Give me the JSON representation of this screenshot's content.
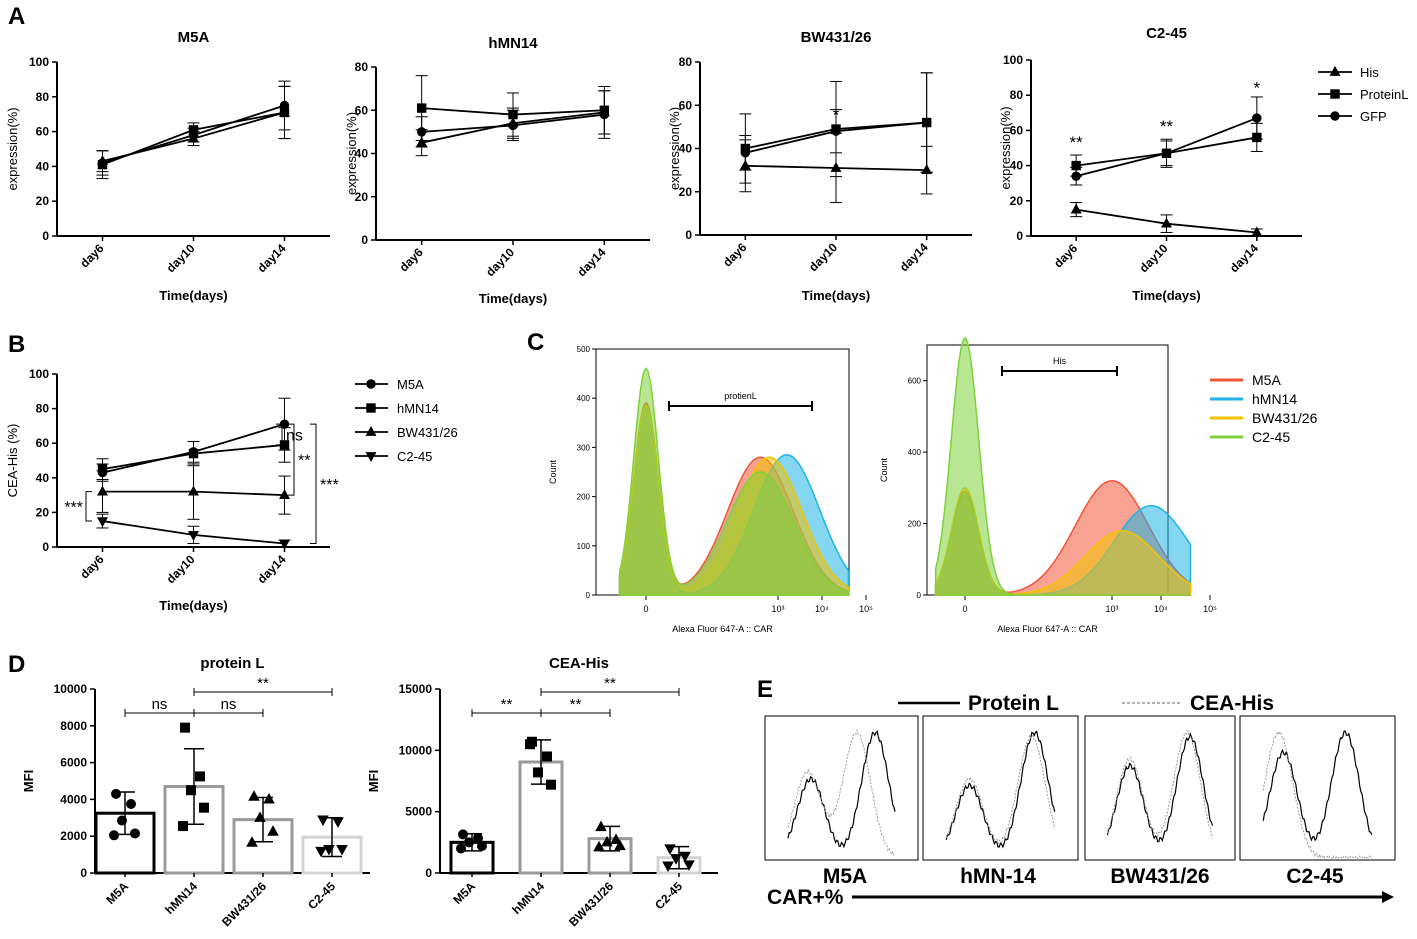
{
  "panel_labels": {
    "A": "A",
    "B": "B",
    "C": "C",
    "D": "D",
    "E": "E"
  },
  "colors": {
    "M5A": "#f0563a",
    "hMN14": "#1fb4e5",
    "BW431_26": "#f2c300",
    "C2_45": "#7fd13b",
    "orange": "#f39320",
    "ink": "#000000",
    "gray": "#9a9a9a"
  },
  "chart_data": [
    {
      "id": "A1",
      "type": "line",
      "title": "M5A",
      "xlabel": "Time(days)",
      "ylabel": "expression(%)",
      "categories": [
        "day6",
        "day10",
        "day14"
      ],
      "ylim": [
        0,
        100
      ],
      "yticks": [
        0,
        20,
        40,
        60,
        80,
        100
      ],
      "series": [
        {
          "name": "His",
          "marker": "triangle",
          "values": [
            43,
            56,
            71
          ],
          "err": [
            6,
            4,
            15
          ]
        },
        {
          "name": "ProteinL",
          "marker": "square",
          "values": [
            41,
            61,
            71
          ],
          "err": [
            8,
            4,
            15
          ]
        },
        {
          "name": "GFP",
          "marker": "circle",
          "values": [
            42,
            58,
            75
          ],
          "err": [
            7,
            4,
            14
          ]
        }
      ],
      "annotations": []
    },
    {
      "id": "A2",
      "type": "line",
      "title": "hMN14",
      "xlabel": "Time(days)",
      "ylabel": "expression(%)",
      "categories": [
        "day6",
        "day10",
        "day14"
      ],
      "ylim": [
        0,
        80
      ],
      "yticks": [
        0,
        20,
        40,
        60,
        80
      ],
      "series": [
        {
          "name": "His",
          "marker": "triangle",
          "values": [
            45,
            54,
            59
          ],
          "err": [
            6,
            7,
            10
          ]
        },
        {
          "name": "ProteinL",
          "marker": "square",
          "values": [
            61,
            58,
            60
          ],
          "err": [
            15,
            10,
            11
          ]
        },
        {
          "name": "GFP",
          "marker": "circle",
          "values": [
            50,
            53,
            58
          ],
          "err": [
            7,
            7,
            11
          ]
        }
      ],
      "annotations": []
    },
    {
      "id": "A3",
      "type": "line",
      "title": "BW431/26",
      "xlabel": "Time(days)",
      "ylabel": "expression(%)",
      "categories": [
        "day6",
        "day10",
        "day14"
      ],
      "ylim": [
        0,
        80
      ],
      "yticks": [
        0,
        20,
        40,
        60,
        80
      ],
      "series": [
        {
          "name": "His",
          "marker": "triangle",
          "values": [
            32,
            31,
            30
          ],
          "err": [
            12,
            16,
            11
          ]
        },
        {
          "name": "ProteinL",
          "marker": "square",
          "values": [
            40,
            49,
            52
          ],
          "err": [
            16,
            22,
            23
          ]
        },
        {
          "name": "GFP",
          "marker": "circle",
          "values": [
            38,
            48,
            52
          ],
          "err": [
            8,
            10,
            23
          ]
        }
      ],
      "annotations": [
        {
          "text": "*",
          "cat": 1,
          "y": 53
        }
      ]
    },
    {
      "id": "A4",
      "type": "line",
      "title": "C2-45",
      "xlabel": "Time(days)",
      "ylabel": "expression(%)",
      "categories": [
        "day6",
        "day10",
        "day14"
      ],
      "ylim": [
        0,
        100
      ],
      "yticks": [
        0,
        20,
        40,
        60,
        80,
        100
      ],
      "series": [
        {
          "name": "His",
          "marker": "triangle",
          "values": [
            15,
            7,
            2
          ],
          "err": [
            4,
            5,
            2
          ]
        },
        {
          "name": "ProteinL",
          "marker": "square",
          "values": [
            40,
            47,
            56
          ],
          "err": [
            6,
            7,
            8
          ]
        },
        {
          "name": "GFP",
          "marker": "circle",
          "values": [
            34,
            47,
            67
          ],
          "err": [
            5,
            8,
            12
          ]
        }
      ],
      "annotations": [
        {
          "text": "**",
          "cat": 0,
          "y": 50
        },
        {
          "text": "**",
          "cat": 1,
          "y": 59
        },
        {
          "text": "*",
          "cat": 2,
          "y": 81
        }
      ]
    },
    {
      "id": "B",
      "type": "line",
      "title": "",
      "xlabel": "Time(days)",
      "ylabel": "CEA-His (%)",
      "categories": [
        "day6",
        "day10",
        "day14"
      ],
      "ylim": [
        0,
        100
      ],
      "yticks": [
        0,
        20,
        40,
        60,
        80,
        100
      ],
      "series": [
        {
          "name": "M5A",
          "marker": "circle",
          "values": [
            43,
            55,
            71
          ],
          "err": [
            5,
            6,
            15
          ]
        },
        {
          "name": "hMN14",
          "marker": "square",
          "values": [
            45,
            54,
            59
          ],
          "err": [
            6,
            7,
            10
          ]
        },
        {
          "name": "BW431/26",
          "marker": "triangle",
          "values": [
            32,
            32,
            30
          ],
          "err": [
            12,
            16,
            11
          ]
        },
        {
          "name": "C2-45",
          "marker": "triangle-down",
          "values": [
            15,
            7,
            2
          ],
          "err": [
            4,
            5,
            2
          ]
        }
      ],
      "brackets": [
        {
          "text": "ns",
          "from": 71,
          "to": 59
        },
        {
          "text": "**",
          "from": 71,
          "to": 30
        },
        {
          "text": "***",
          "from": 71,
          "to": 2
        },
        {
          "text": "***",
          "from": 32,
          "to": 15
        }
      ]
    },
    {
      "id": "C1",
      "type": "area",
      "title": "",
      "xlabel": "Alexa Fluor 647-A :: CAR",
      "ylabel": "Count",
      "gate_label": "protienL",
      "ylim": [
        0,
        500
      ],
      "yticks": [
        0,
        100,
        200,
        300,
        400,
        500
      ],
      "xticks": [
        "0",
        "10³",
        "10⁴",
        "10⁵"
      ],
      "series": [
        {
          "name": "M5A",
          "peaks": [
            [
              0,
              390
            ],
            [
              2.6,
              280
            ]
          ]
        },
        {
          "name": "hMN14",
          "peaks": [
            [
              0,
              380
            ],
            [
              3.2,
              285
            ]
          ]
        },
        {
          "name": "BW431/26",
          "peaks": [
            [
              0,
              385
            ],
            [
              2.8,
              280
            ]
          ]
        },
        {
          "name": "C2-45",
          "peaks": [
            [
              0,
              460
            ],
            [
              2.6,
              250
            ]
          ]
        }
      ]
    },
    {
      "id": "C2",
      "type": "area",
      "title": "",
      "xlabel": "Alexa Fluor 647-A :: CAR",
      "ylabel": "Count",
      "gate_label": "His",
      "ylim": [
        0,
        700
      ],
      "yticks": [
        0,
        200,
        400,
        600
      ],
      "xticks": [
        "0",
        "10³",
        "10⁴",
        "10⁵"
      ],
      "series": [
        {
          "name": "M5A",
          "peaks": [
            [
              0,
              290
            ],
            [
              3.0,
              320
            ]
          ]
        },
        {
          "name": "hMN14",
          "peaks": [
            [
              0,
              280
            ],
            [
              3.8,
              250
            ]
          ]
        },
        {
          "name": "BW431/26",
          "peaks": [
            [
              0,
              300
            ],
            [
              3.2,
              180
            ]
          ]
        },
        {
          "name": "C2-45",
          "peaks": [
            [
              0,
              720
            ]
          ]
        }
      ]
    },
    {
      "id": "D1",
      "type": "bar",
      "title": "protein L",
      "xlabel": "",
      "ylabel": "MFI",
      "categories": [
        "M5A",
        "hMN14",
        "BW431/26",
        "C2-45"
      ],
      "ylim": [
        0,
        10000
      ],
      "yticks": [
        0,
        2000,
        4000,
        6000,
        8000,
        10000
      ],
      "values": [
        3250,
        4700,
        2900,
        1950
      ],
      "err": [
        1150,
        2050,
        1200,
        1050
      ],
      "points": [
        [
          4300,
          3750,
          2850,
          2150,
          2050
        ],
        [
          7900,
          5250,
          4500,
          3550,
          2550
        ],
        [
          4150,
          4000,
          3000,
          2250,
          1650
        ],
        [
          2900,
          2800,
          1300,
          1300,
          1200
        ]
      ],
      "markers": [
        "circle",
        "square",
        "triangle",
        "triangle-down"
      ],
      "edge_colors": [
        "#000000",
        "#9a9a9a",
        "#9a9a9a",
        "#d4d4d4"
      ],
      "brackets": [
        {
          "text": "ns",
          "a": 0,
          "b": 1
        },
        {
          "text": "ns",
          "a": 1,
          "b": 2
        },
        {
          "text": "**",
          "a": 1,
          "b": 3
        }
      ]
    },
    {
      "id": "D2",
      "type": "bar",
      "title": "CEA-His",
      "xlabel": "",
      "ylabel": "MFI",
      "categories": [
        "M5A",
        "hMN14",
        "BW431/26",
        "C2-45"
      ],
      "ylim": [
        0,
        15000
      ],
      "yticks": [
        0,
        5000,
        10000,
        15000
      ],
      "values": [
        2500,
        9050,
        2800,
        1250
      ],
      "err": [
        700,
        1800,
        1000,
        900
      ],
      "points": [
        [
          3150,
          2850,
          2500,
          2200,
          2000
        ],
        [
          10700,
          9500,
          8200,
          7200,
          10500
        ],
        [
          3750,
          2700,
          2500,
          2200,
          2100
        ],
        [
          2000,
          1400,
          1200,
          700,
          600
        ]
      ],
      "markers": [
        "circle",
        "square",
        "triangle",
        "triangle-down"
      ],
      "edge_colors": [
        "#000000",
        "#9a9a9a",
        "#9a9a9a",
        "#d4d4d4"
      ],
      "brackets": [
        {
          "text": "**",
          "a": 0,
          "b": 1
        },
        {
          "text": "**",
          "a": 1,
          "b": 2
        },
        {
          "text": "**",
          "a": 1,
          "b": 3
        }
      ]
    }
  ],
  "panel_a_legend": [
    "His",
    "ProteinL",
    "GFP"
  ],
  "panel_c_legend": [
    "M5A",
    "hMN14",
    "BW431/26",
    "C2-45"
  ],
  "panel_e": {
    "legend": {
      "solid": "Protein L",
      "dotted": "CEA-His"
    },
    "samples": [
      "M5A",
      "hMN-14",
      "BW431/26",
      "C2-45"
    ],
    "axis_label": "CAR+%"
  }
}
